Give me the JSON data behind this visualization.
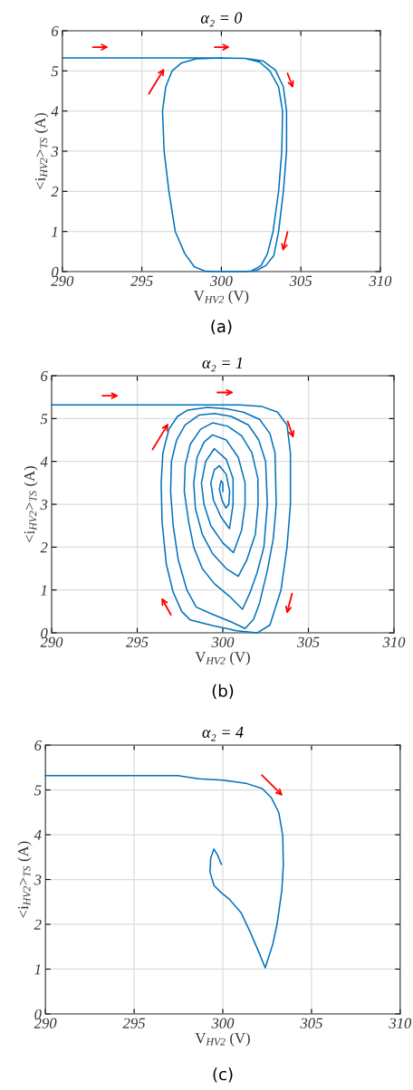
{
  "chart_data": [
    {
      "type": "line",
      "title": "α₂ = 0",
      "xlabel": "V$_{HV2}$ (V)",
      "ylabel": "<i$_{HV2}$>$_{TS}$ (A)",
      "xlim": [
        290,
        310
      ],
      "ylim": [
        0,
        6
      ],
      "xticks": [
        290,
        295,
        300,
        305,
        310
      ],
      "yticks": [
        0,
        1,
        2,
        3,
        4,
        5,
        6
      ],
      "grid": true,
      "annotations": [
        "(a)"
      ],
      "series": [
        {
          "color": "#0072bd",
          "x": [
            290,
            300,
            301.5,
            302.6,
            303.4,
            303.9,
            304.1,
            304.1,
            303.9,
            303.6,
            303.3,
            302.8,
            302.2,
            301.5,
            300,
            299,
            298.3,
            297.7,
            297.1,
            296.7,
            296.4,
            296.3,
            296.5,
            296.9,
            297.5,
            298.4,
            300,
            301.5,
            302.4,
            303.05,
            303.6,
            303.85,
            303.8,
            303.6,
            303.25,
            302.9,
            302.5,
            301.9,
            301.5,
            300,
            299,
            298.3,
            297.7,
            297.1,
            296.7,
            296.4,
            296.3,
            296.5,
            296.9,
            297.5,
            298.4,
            300
          ],
          "values": [
            5.32,
            5.32,
            5.31,
            5.25,
            5.02,
            4.6,
            4.0,
            3.0,
            2.0,
            1.0,
            0.4,
            0.15,
            0.03,
            0,
            0,
            0.01,
            0.12,
            0.45,
            1.0,
            2.0,
            3.0,
            4.0,
            4.6,
            5.0,
            5.2,
            5.3,
            5.32,
            5.31,
            5.22,
            5.0,
            4.6,
            4.0,
            3.0,
            2.0,
            1.0,
            0.45,
            0.15,
            0.02,
            0,
            0,
            0.01,
            0.12,
            0.45,
            1.0,
            2.0,
            3.0,
            4.0,
            4.6,
            5.0,
            5.2,
            5.3,
            5.32
          ]
        }
      ]
    },
    {
      "type": "line",
      "title": "α₂ = 1",
      "xlabel": "V$_{HV2}$ (V)",
      "ylabel": "<i$_{HV2}$>$_{TS}$ (A)",
      "xlim": [
        290,
        310
      ],
      "ylim": [
        0,
        6
      ],
      "xticks": [
        290,
        295,
        300,
        305,
        310
      ],
      "yticks": [
        0,
        1,
        2,
        3,
        4,
        5,
        6
      ],
      "grid": true,
      "annotations": [
        "(b)"
      ],
      "series": [
        {
          "color": "#0072bd",
          "x": [
            290,
            301.0,
            302.3,
            303.2,
            303.75,
            303.95,
            303.95,
            303.75,
            303.4,
            302.75,
            302.0,
            300.8,
            299.4,
            298.1,
            297.6,
            297.1,
            296.7,
            296.45,
            296.4,
            296.5,
            296.85,
            297.35,
            297.95,
            299.1,
            300.2,
            301.2,
            302.15,
            302.75,
            303.05,
            303.12,
            302.95,
            302.6,
            302.15,
            301.8,
            301.3,
            300.4,
            299.3,
            298.45,
            297.9,
            297.4,
            297.1,
            296.95,
            297.0,
            297.3,
            297.8,
            298.6,
            299.5,
            300.5,
            301.5,
            302.1,
            302.5,
            302.6,
            302.4,
            302.0,
            301.6,
            301.15,
            300.4,
            299.5,
            298.8,
            298.3,
            298.0,
            297.75,
            297.8,
            298.1,
            298.7,
            299.4,
            300.3,
            301.1,
            301.7,
            302.05,
            302.06,
            301.9,
            301.4,
            300.9,
            300.2,
            299.4,
            298.8,
            298.4,
            298.3,
            298.5,
            298.9,
            299.4,
            300.2,
            300.9,
            301.3,
            301.3,
            301.1,
            300.62,
            300.0,
            299.3,
            298.9,
            298.75,
            299.0,
            299.5,
            300.2,
            300.6,
            300.6,
            300.39,
            299.9,
            299.45,
            299.3,
            299.5,
            299.8,
            300.2,
            300.4,
            300.35,
            300.18,
            299.95,
            299.8,
            299.9,
            300.0,
            300.0
          ],
          "values": [
            5.32,
            5.32,
            5.28,
            5.15,
            4.85,
            4.2,
            3.0,
            2.0,
            1.0,
            0.18,
            0.0,
            0.05,
            0.17,
            0.3,
            0.5,
            0.95,
            1.6,
            2.6,
            3.5,
            4.2,
            4.75,
            5.05,
            5.2,
            5.26,
            5.23,
            5.15,
            4.98,
            4.65,
            4.2,
            3.0,
            2.2,
            1.45,
            0.7,
            0.32,
            0.1,
            0.27,
            0.45,
            0.6,
            1.0,
            1.7,
            2.5,
            3.3,
            4.0,
            4.5,
            4.85,
            5.08,
            5.12,
            5.05,
            4.85,
            4.5,
            4.0,
            3.0,
            2.0,
            1.4,
            0.95,
            0.55,
            0.85,
            1.15,
            1.5,
            2.0,
            2.6,
            3.3,
            3.9,
            4.4,
            4.75,
            4.9,
            4.82,
            4.6,
            4.2,
            3.6,
            3.0,
            2.3,
            1.7,
            1.32,
            1.5,
            1.85,
            2.3,
            2.9,
            3.5,
            4.1,
            4.45,
            4.62,
            4.5,
            4.1,
            3.5,
            3.0,
            2.4,
            1.87,
            2.1,
            2.5,
            3.0,
            3.5,
            4.0,
            4.3,
            4.05,
            3.6,
            3.0,
            2.43,
            2.7,
            3.1,
            3.5,
            3.8,
            3.9,
            3.7,
            3.3,
            3.0,
            2.91,
            3.1,
            3.35,
            3.55,
            3.5,
            3.3
          ]
        }
      ]
    },
    {
      "type": "line",
      "title": "α₂ = 4",
      "xlabel": "V$_{HV2}$ (V)",
      "ylabel": "<i$_{HV2}$>$_{TS}$ (A)",
      "xlim": [
        290,
        310
      ],
      "ylim": [
        0,
        6
      ],
      "xticks": [
        290,
        295,
        300,
        305,
        310
      ],
      "yticks": [
        0,
        1,
        2,
        3,
        4,
        5,
        6
      ],
      "grid": true,
      "annotations": [
        "(c)"
      ],
      "series": [
        {
          "color": "#0072bd",
          "x": [
            290,
            297.46,
            298.65,
            300.0,
            301.37,
            302.22,
            302.73,
            303.16,
            303.38,
            303.41,
            303.33,
            303.07,
            302.82,
            302.39,
            302.05,
            301.54,
            301.03,
            300.35,
            299.93,
            299.5,
            299.28,
            299.32,
            299.5,
            299.7,
            299.92
          ],
          "values": [
            5.32,
            5.32,
            5.25,
            5.22,
            5.14,
            5.03,
            4.83,
            4.49,
            3.98,
            3.31,
            2.77,
            2.03,
            1.56,
            1.03,
            1.36,
            1.83,
            2.26,
            2.57,
            2.7,
            2.87,
            3.17,
            3.48,
            3.68,
            3.55,
            3.34
          ]
        }
      ]
    }
  ]
}
